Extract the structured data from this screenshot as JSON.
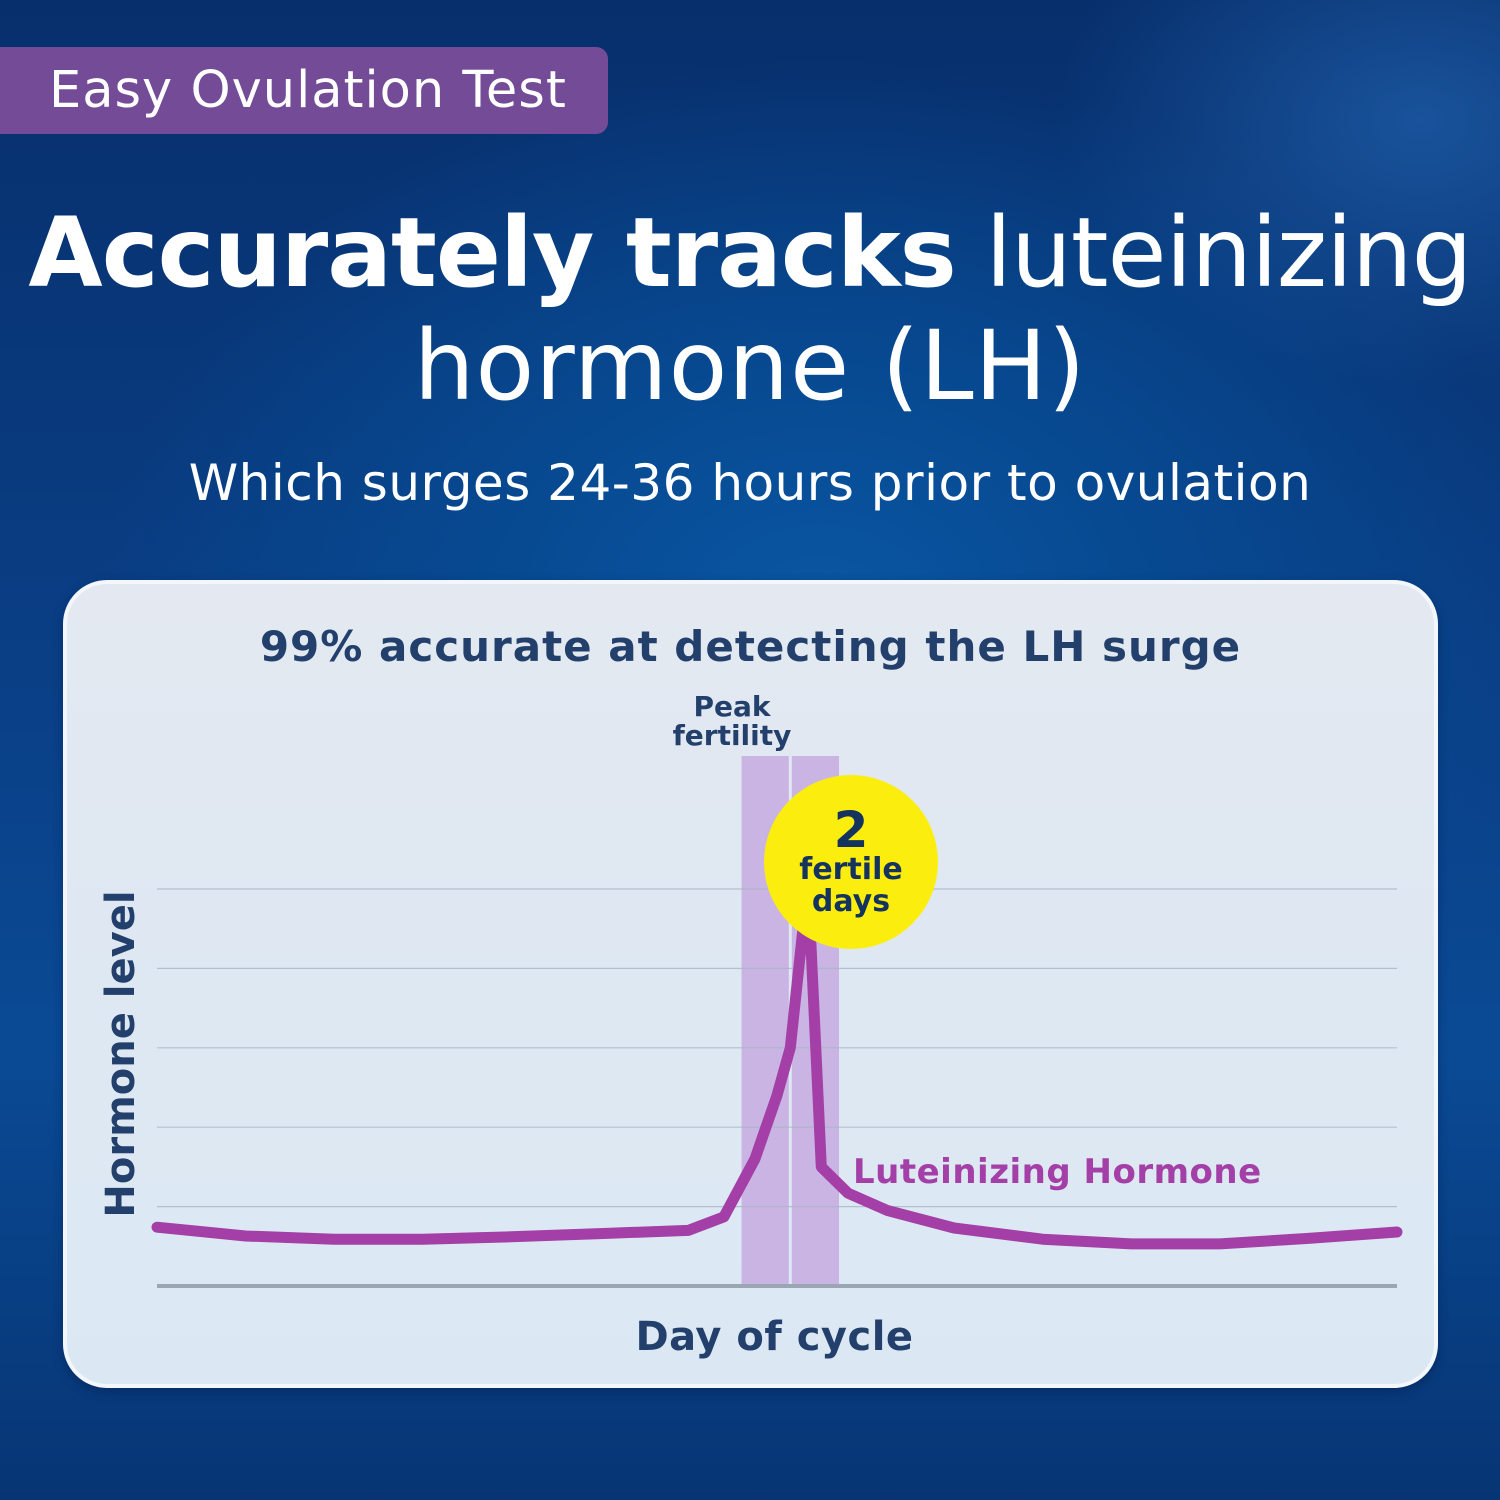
{
  "badge": {
    "label": "Easy Ovulation Test"
  },
  "headline": {
    "bold": "Accurately tracks",
    "light": "luteinizing",
    "line2": "hormone (LH)",
    "subtitle": "Which surges 24-36 hours prior to ovulation"
  },
  "card": {
    "title": "99% accurate at detecting the LH surge",
    "peak_label_line1": "Peak",
    "peak_label_line2": "fertility",
    "bubble": {
      "number": "2",
      "line1": "fertile",
      "line2": "days"
    },
    "series_label": "Luteinizing Hormone",
    "ylabel": "Hormone level",
    "xlabel": "Day of cycle"
  },
  "colors": {
    "background": "#0a4a95",
    "badge": "#744b97",
    "card": "#dfe8f2",
    "text_dark": "#22406b",
    "line": "#a33fa6",
    "peak_band": "#c9b4e3",
    "bubble": "#fbee0e",
    "grid": "#a9b6c6",
    "axis": "#9aa6b4"
  },
  "chart_data": {
    "type": "line",
    "title": "99% accurate at detecting the LH surge",
    "xlabel": "Day of cycle",
    "ylabel": "Hormone level",
    "x_ticks": [],
    "y_ticks": [],
    "grid": true,
    "grid_lines": 5,
    "ylim": [
      0,
      5
    ],
    "xlim": [
      0,
      28
    ],
    "series": [
      {
        "name": "Luteinizing Hormone",
        "x": [
          0,
          2,
          4,
          6,
          8,
          10,
          12,
          12.8,
          13.5,
          14,
          14.3,
          14.7,
          15.0,
          15.6,
          16.5,
          18,
          20,
          22,
          24,
          26,
          28
        ],
        "values": [
          0.74,
          0.63,
          0.59,
          0.59,
          0.62,
          0.66,
          0.7,
          0.87,
          1.6,
          2.4,
          3.0,
          5.1,
          1.5,
          1.17,
          0.95,
          0.73,
          0.59,
          0.53,
          0.53,
          0.6,
          0.68
        ]
      }
    ],
    "annotations": [
      {
        "type": "band",
        "label": "Peak fertility",
        "x_start": 13.2,
        "x_end": 15.4,
        "days": 2
      },
      {
        "type": "callout",
        "text": "2 fertile days"
      },
      {
        "type": "series-label",
        "text": "Luteinizing Hormone"
      }
    ],
    "legend": "none"
  }
}
